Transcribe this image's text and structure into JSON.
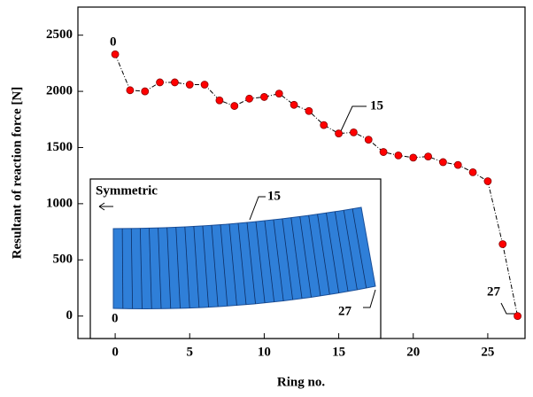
{
  "chart_data": {
    "type": "line",
    "x_label": "Ring no.",
    "y_label": "Resultant of reaction force [N]",
    "x": [
      0,
      1,
      2,
      3,
      4,
      5,
      6,
      7,
      8,
      9,
      10,
      11,
      12,
      13,
      14,
      15,
      16,
      17,
      18,
      19,
      20,
      21,
      22,
      23,
      24,
      25,
      26,
      27
    ],
    "series": [
      {
        "color": "#ff0000",
        "values": [
          2330,
          2010,
          2000,
          2080,
          2080,
          2060,
          2060,
          1920,
          1870,
          1935,
          1950,
          1980,
          1880,
          1825,
          1700,
          1625,
          1635,
          1570,
          1460,
          1430,
          1410,
          1420,
          1370,
          1345,
          1280,
          1200,
          640,
          0
        ]
      }
    ],
    "xlim": [
      -2.5,
      27.5
    ],
    "ylim": [
      -200,
      2750
    ],
    "xticks": [
      0,
      5,
      10,
      15,
      20,
      25
    ],
    "yticks": [
      0,
      500,
      1000,
      1500,
      2000,
      2500
    ],
    "annotations": [
      "0",
      "15",
      "27"
    ],
    "inset_labels": [
      "Symmetric",
      "15",
      "0",
      "27"
    ]
  }
}
